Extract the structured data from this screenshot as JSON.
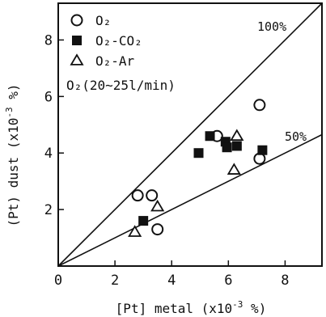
{
  "chart_data": {
    "type": "scatter",
    "xlabel": "[Pt] metal (x10",
    "xlabel_exp": "-3",
    "xlabel_unit": " %)",
    "ylabel": "(Pt) dust (x10",
    "ylabel_exp": "-3",
    "ylabel_unit": " %)",
    "xlim": [
      0,
      9.3
    ],
    "ylim": [
      0,
      9.3
    ],
    "x_ticks": [
      0,
      2,
      4,
      6,
      8
    ],
    "y_ticks": [
      2,
      4,
      6,
      8
    ],
    "x_tick_labels": [
      "0",
      "2",
      "4",
      "6",
      "8"
    ],
    "y_tick_labels": [
      "2",
      "4",
      "6",
      "8"
    ],
    "grid": false,
    "legend_position": "top-left",
    "legend_note": "O₂(20∼25l/min)",
    "reference_lines": [
      {
        "label": "100%",
        "slope": 1.0
      },
      {
        "label": "50%",
        "slope": 0.5
      }
    ],
    "series": [
      {
        "name": "O₂",
        "marker": "circle-open",
        "points": [
          [
            2.8,
            2.5
          ],
          [
            3.3,
            2.5
          ],
          [
            3.5,
            1.3
          ],
          [
            5.6,
            4.6
          ],
          [
            7.1,
            3.8
          ],
          [
            7.1,
            5.7
          ]
        ]
      },
      {
        "name": "O₂-CO₂",
        "marker": "square-filled",
        "points": [
          [
            3.0,
            1.6
          ],
          [
            4.95,
            4.0
          ],
          [
            5.35,
            4.6
          ],
          [
            5.9,
            4.4
          ],
          [
            5.95,
            4.2
          ],
          [
            6.3,
            4.25
          ],
          [
            7.2,
            4.1
          ]
        ]
      },
      {
        "name": "O₂-Ar",
        "marker": "triangle-open",
        "points": [
          [
            2.7,
            1.2
          ],
          [
            3.5,
            2.1
          ],
          [
            6.2,
            3.4
          ],
          [
            6.3,
            4.6
          ]
        ]
      }
    ]
  }
}
